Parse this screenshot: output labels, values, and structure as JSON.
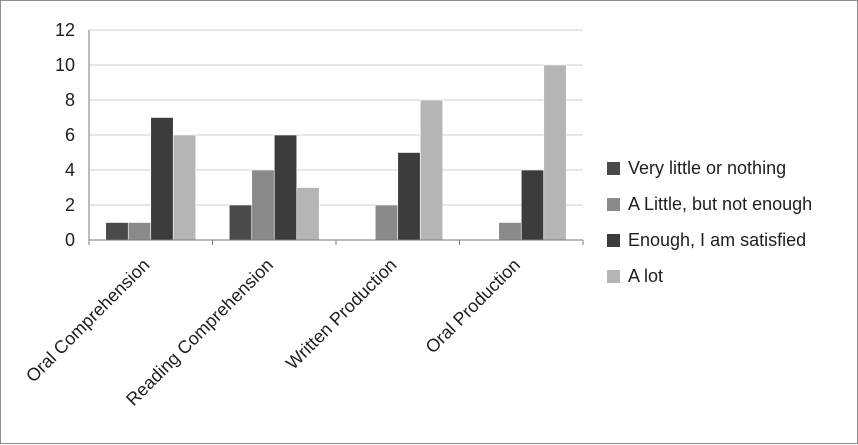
{
  "chart_data": {
    "type": "bar",
    "categories": [
      "Oral Comprehension",
      "Reading Comprehension",
      "Written Production",
      "Oral Production"
    ],
    "series": [
      {
        "name": "Very little or nothing",
        "values": [
          1,
          2,
          0,
          0
        ],
        "color": "#4a4a4a"
      },
      {
        "name": "A Little, but not enough",
        "values": [
          1,
          4,
          2,
          1
        ],
        "color": "#8a8a8a"
      },
      {
        "name": "Enough, I am satisfied",
        "values": [
          7,
          6,
          5,
          4
        ],
        "color": "#3c3c3c"
      },
      {
        "name": "A lot",
        "values": [
          6,
          3,
          8,
          10
        ],
        "color": "#b5b5b5"
      }
    ],
    "ylim": [
      0,
      12
    ],
    "yticks": [
      0,
      2,
      4,
      6,
      8,
      10,
      12
    ],
    "grid": true,
    "legend_position": "right",
    "title": "",
    "xlabel": "",
    "ylabel": ""
  }
}
